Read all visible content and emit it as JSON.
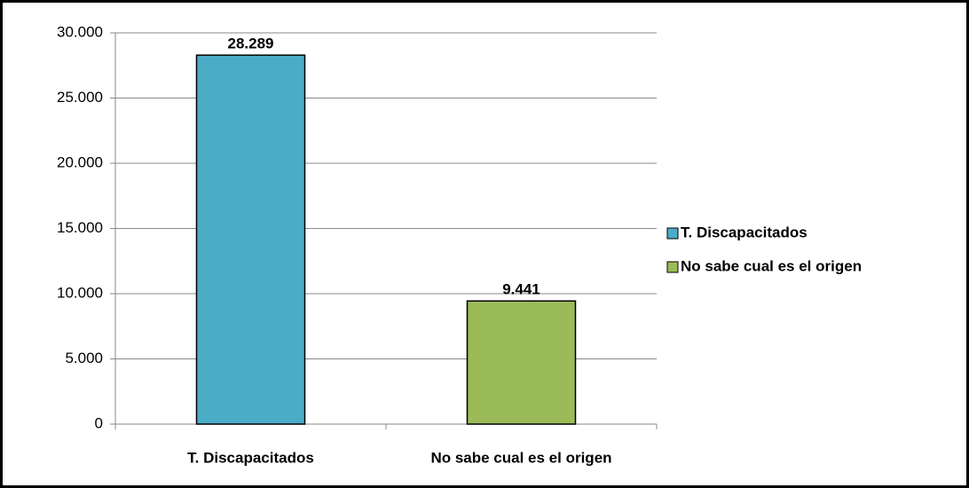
{
  "chart_data": {
    "type": "bar",
    "categories": [
      "T. Discapacitados",
      "No sabe cual es el origen"
    ],
    "values": [
      28289,
      9441
    ],
    "value_labels": [
      "28.289",
      "9.441"
    ],
    "colors": [
      "#4bacc6",
      "#9bbb59"
    ],
    "ylim": [
      0,
      30000
    ],
    "yticks": [
      0,
      {
        "value": 5000,
        "label": "5.000"
      },
      {
        "value": 10000,
        "label": "10.000"
      },
      {
        "value": 15000,
        "label": "15.000"
      },
      {
        "value": 20000,
        "label": "20.000"
      },
      {
        "value": 25000,
        "label": "25.000"
      },
      {
        "value": 30000,
        "label": "30.000"
      }
    ],
    "grid": true,
    "legend": "right"
  }
}
